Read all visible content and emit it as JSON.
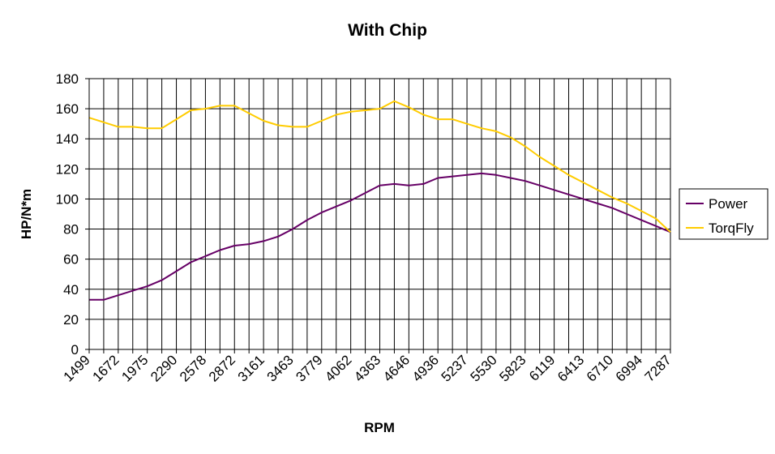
{
  "chart_data": {
    "type": "line",
    "title": "With Chip",
    "xlabel": "RPM",
    "ylabel": "HP/N*m",
    "ylim": [
      0,
      180
    ],
    "yticks": [
      0,
      20,
      40,
      60,
      80,
      100,
      120,
      140,
      160,
      180
    ],
    "grid": true,
    "legend": "right",
    "categories": [
      "1499",
      "1672",
      "1975",
      "2290",
      "2578",
      "2872",
      "3161",
      "3463",
      "3779",
      "4062",
      "4363",
      "4646",
      "4936",
      "5237",
      "5530",
      "5823",
      "6119",
      "6413",
      "6710",
      "6994",
      "7287"
    ],
    "x": [
      0,
      0.5,
      1,
      1.5,
      2,
      2.5,
      3,
      3.5,
      4,
      4.5,
      5,
      5.5,
      6,
      6.5,
      7,
      7.5,
      8,
      8.5,
      9,
      9.5,
      10,
      10.5,
      11,
      11.5,
      12,
      12.5,
      13,
      13.5,
      14,
      14.5,
      15,
      15.5,
      16,
      16.5,
      17,
      17.5,
      18,
      18.5,
      19,
      19.5,
      20
    ],
    "series": [
      {
        "name": "Power",
        "color": "#660066",
        "values": [
          33,
          33,
          36,
          39,
          42,
          46,
          52,
          58,
          62,
          66,
          69,
          70,
          72,
          75,
          80,
          86,
          91,
          95,
          99,
          104,
          109,
          110,
          109,
          110,
          114,
          115,
          116,
          117,
          116,
          114,
          112,
          109,
          106,
          103,
          100,
          97,
          94,
          90,
          86,
          82,
          78
        ]
      },
      {
        "name": "TorqFly",
        "color": "#FFCC00",
        "values": [
          154,
          151,
          148,
          148,
          147,
          147,
          153,
          159,
          160,
          162,
          162,
          157,
          152,
          149,
          148,
          148,
          152,
          156,
          158,
          159,
          160,
          165,
          161,
          156,
          153,
          153,
          150,
          147,
          145,
          141,
          135,
          128,
          122,
          116,
          111,
          106,
          101,
          97,
          92,
          87,
          78
        ]
      }
    ]
  }
}
